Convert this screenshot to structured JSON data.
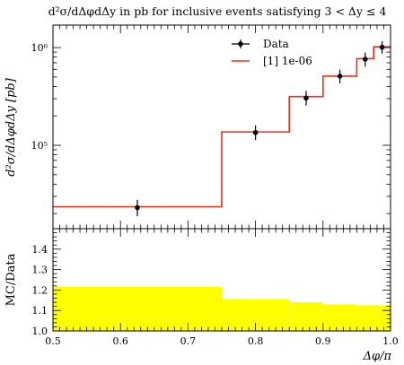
{
  "chart_data": [
    {
      "type": "line",
      "title": "d²σ/dΔφdΔy in pb for inclusive events satisfying 3 < Δy ≤ 4",
      "ylabel": "d²σ/dΔφdΔy [pb]",
      "yscale": "log",
      "ylim": [
        14000,
        1700000
      ],
      "xlim": [
        0.5,
        1.0
      ],
      "ytick_labels": [
        "10⁵",
        "10⁶"
      ],
      "legend_position": "top-right",
      "grid": false,
      "series": [
        {
          "name": "Data",
          "kind": "points-with-errors",
          "color": "#000000",
          "x": [
            0.625,
            0.8,
            0.875,
            0.925,
            0.9625,
            0.9875
          ],
          "y": [
            23000,
            135000,
            305000,
            510000,
            760000,
            1010000
          ],
          "y_err_low": [
            4200,
            22000,
            50000,
            80000,
            120000,
            140000
          ],
          "y_err_high": [
            4600,
            25000,
            55000,
            85000,
            130000,
            150000
          ]
        },
        {
          "name": "[1] 1e-06",
          "kind": "step",
          "color": "#e8321e",
          "bin_edges": [
            0.5,
            0.75,
            0.85,
            0.9,
            0.95,
            0.975,
            1.0
          ],
          "values": [
            23500,
            137000,
            315000,
            510000,
            770000,
            1020000
          ]
        }
      ]
    },
    {
      "type": "area",
      "ylabel": "MC/Data",
      "xlabel": "Δφ/π",
      "xlim": [
        0.5,
        1.0
      ],
      "ylim": [
        1.0,
        1.5
      ],
      "xtick_labels": [
        "0.5",
        "0.6",
        "0.7",
        "0.8",
        "0.9",
        "1.0"
      ],
      "ytick_labels": [
        "1.0",
        "1.1",
        "1.2",
        "1.3",
        "1.4"
      ],
      "band_color": "#ffff00",
      "bin_edges": [
        0.5,
        0.75,
        0.85,
        0.9,
        0.95,
        0.975,
        1.0
      ],
      "band_upper": [
        1.215,
        1.155,
        1.14,
        1.13,
        1.125,
        1.125
      ],
      "band_lower": [
        1.0,
        1.0,
        1.0,
        1.0,
        1.0,
        1.0
      ]
    }
  ]
}
